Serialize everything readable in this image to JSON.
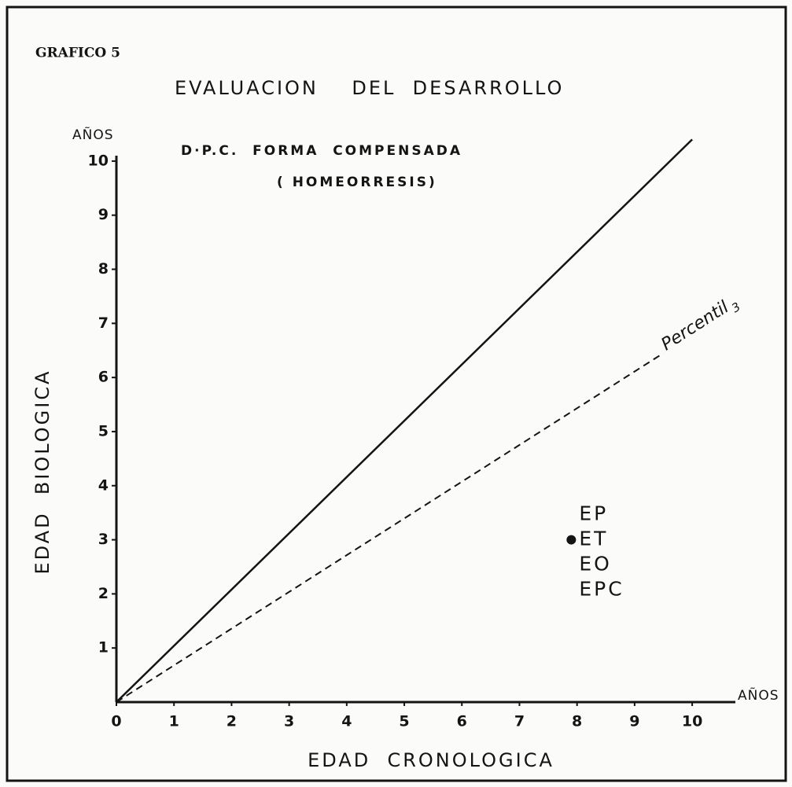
{
  "chart_data": {
    "type": "line",
    "label": "GRAFICO 5",
    "title": "EVALUACION    DEL  DESARROLLO",
    "subtitle": [
      "D·P.C.  FORMA  COMPENSADA",
      "( HOMEORRESIS)"
    ],
    "x_label": "EDAD  CRONOLOGICA",
    "y_label": "EDAD  BIOLOGICA",
    "x_unit": "AÑOS",
    "y_unit": "AÑOS",
    "xlim": [
      0,
      10.75
    ],
    "ylim": [
      0,
      10.1
    ],
    "xticks": [
      0,
      1,
      2,
      3,
      4,
      5,
      6,
      7,
      8,
      9,
      10
    ],
    "yticks": [
      1,
      2,
      3,
      4,
      5,
      6,
      7,
      8,
      9,
      10
    ],
    "series": [
      {
        "color": "#141414",
        "style": "solid",
        "x": [
          0,
          10
        ],
        "values": [
          0,
          10.4
        ]
      },
      {
        "color": "#141414",
        "style": "dashed",
        "x": [
          0,
          9.5
        ],
        "values": [
          0,
          6.45
        ]
      }
    ],
    "annotation": {
      "text": "Percentil",
      "subscript": "3"
    },
    "point": {
      "x": 7.9,
      "y": 3,
      "labels": [
        "EP",
        "ET",
        "EO",
        "EPC"
      ]
    }
  }
}
